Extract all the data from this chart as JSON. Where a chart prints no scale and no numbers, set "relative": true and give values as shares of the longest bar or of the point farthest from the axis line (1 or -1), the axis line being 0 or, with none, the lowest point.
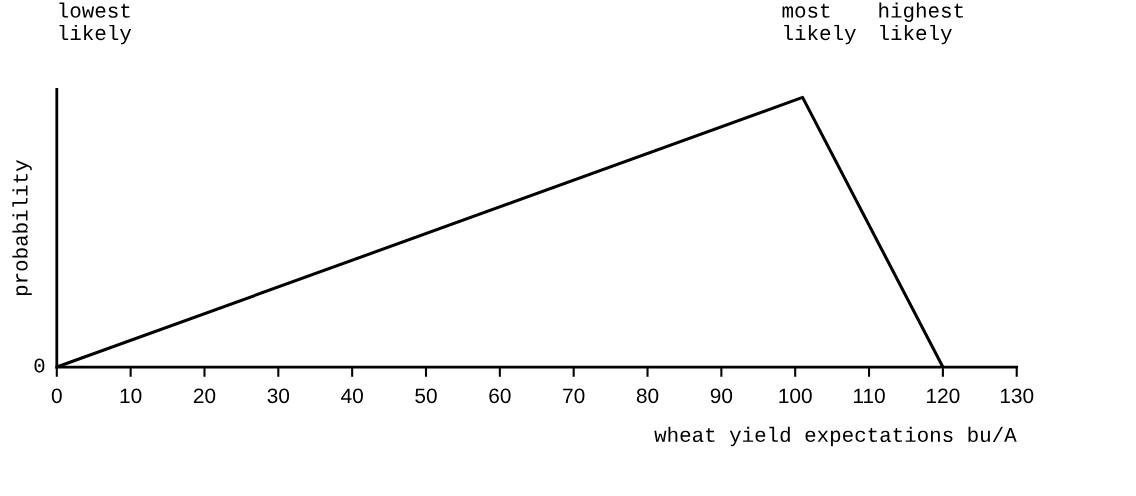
{
  "chart_data": {
    "type": "line",
    "relative": true,
    "xlabel": "wheat yield expectations bu/A",
    "ylabel": "probability",
    "x": [
      0,
      101,
      120
    ],
    "series": [
      {
        "color": "#000000",
        "values": [
          0,
          1,
          0
        ]
      }
    ],
    "xlim": [
      0,
      130
    ],
    "xticks": [
      0,
      10,
      20,
      30,
      40,
      50,
      60,
      70,
      80,
      90,
      100,
      110,
      120,
      130
    ],
    "annotations": [
      "lowest\nlikely",
      "most\nlikely",
      "highest\nlikely",
      "0"
    ],
    "grid": false,
    "legend": false,
    "marker": "none",
    "line_style": "solid"
  }
}
